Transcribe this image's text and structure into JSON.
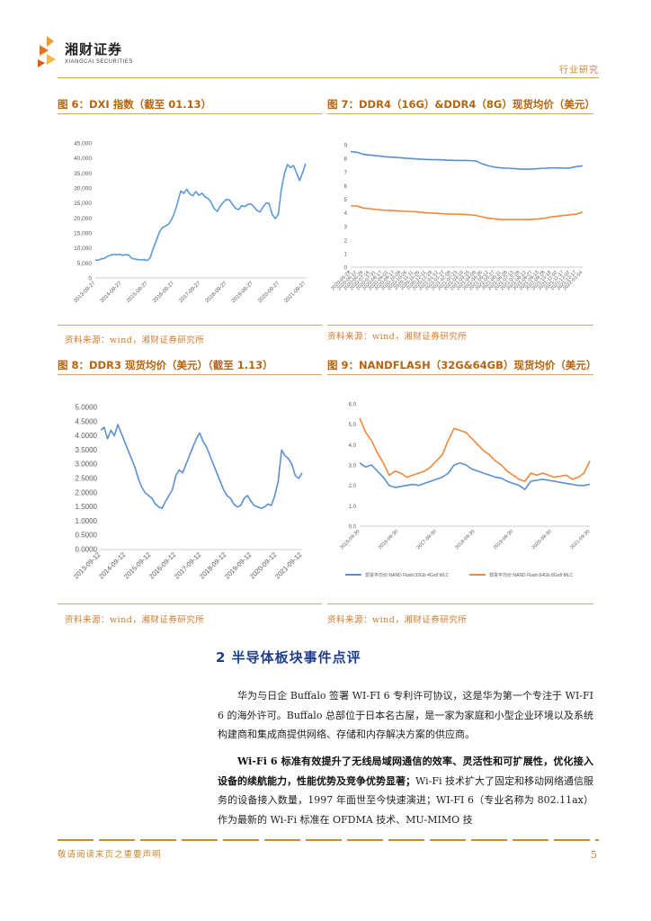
{
  "header": {
    "logo_cn": "湘财证券",
    "logo_en": "XIANGCAI SECURITIES",
    "report_type": "行业研究"
  },
  "figures": [
    {
      "title": "图 6：DXI 指数（截至 01.13）",
      "source": "资料来源：wind，湘财证券研究所"
    },
    {
      "title": "图 7：DDR4（16G）&DDR4（8G）现货均价（美元）",
      "source": "资料来源：wind，湘财证券研究所"
    },
    {
      "title": "图 8：DDR3 现货均价（美元）（截至 1.13）",
      "source": "资料来源：wind，湘财证券研究所"
    },
    {
      "title": "图 9：NANDFLASH（32G&64GB）现货均价（美元）",
      "source": "资料来源：wind，湘财证券研究所"
    }
  ],
  "section": {
    "heading": "2 半导体板块事件点评"
  },
  "paragraphs": [
    {
      "text": "华为与日企 Buffalo 签署 WI-FI 6 专利许可协议，这是华为第一个专注于 WI-FI 6 的海外许可。Buffalo 总部位于日本名古屋，是一家为家庭和小型企业环境以及系统构建商和集成商提供网络、存储和内存解决方案的供应商。"
    },
    {
      "bold": "Wi-Fi 6 标准有效提升了无线局域网通信的效率、灵活性和可扩展性，优化接入设备的续航能力，性能优势及竞争优势显著；",
      "text": "Wi-Fi 技术扩大了固定和移动网络通信服务的设备接入数量，1997 年面世至今快速演进；WI-FI 6（专业名称为 802.11ax）作为最新的 Wi-Fi 标准在 OFDMA 技术、MU-MIMO 技"
    }
  ],
  "footer": {
    "disclaimer": "敬请阅读末页之重要声明",
    "page": "5"
  },
  "colors": {
    "line_blue": "#5b8fd0",
    "line_orange": "#f0883a",
    "dxi_line": "#5a9ad8",
    "accent": "#c8872c"
  },
  "chart_data": [
    {
      "type": "line",
      "title": "",
      "x_ticks": [
        "2013-09-27",
        "2014-09-27",
        "2015-09-27",
        "2016-09-27",
        "2017-09-27",
        "2018-09-27",
        "2019-09-27",
        "2020-09-27",
        "2021-09-27"
      ],
      "y_ticks": [
        "0",
        "5,000",
        "10,000",
        "15,000",
        "20,000",
        "25,000",
        "30,000",
        "35,000",
        "40,000",
        "45,000"
      ],
      "ylim": [
        0,
        45000
      ],
      "series": [
        {
          "values": [
            6000,
            5900,
            6400,
            6500,
            7200,
            7600,
            7800,
            7700,
            7900,
            7500,
            7800,
            7600,
            6500,
            6300,
            6100,
            6000,
            6100,
            5800,
            6700,
            9800,
            12400,
            15200,
            16800,
            17300,
            17900,
            19500,
            21800,
            25200,
            29000,
            28200,
            29600,
            28000,
            27400,
            28800,
            27500,
            28300,
            27000,
            26500,
            25200,
            23000,
            22200,
            24000,
            25200,
            26200,
            26000,
            24500,
            23200,
            22800,
            24100,
            23800,
            24500,
            24700,
            23800,
            22500,
            22000,
            23600,
            25000,
            24800,
            21200,
            19800,
            21200,
            29500,
            34800,
            37800,
            36800,
            37500,
            35000,
            32500,
            35200,
            38200
          ]
        }
      ]
    },
    {
      "type": "line",
      "title": "",
      "y_ticks": [
        "0",
        "1",
        "2",
        "3",
        "4",
        "5",
        "6",
        "7",
        "8",
        "9"
      ],
      "ylim": [
        0,
        9
      ],
      "x_ticks": [
        "2020-05-28",
        "2020-06-12",
        "2020-06-29",
        "2020-07-16",
        "2020-07-31",
        "2020-08-17",
        "2020-09-01",
        "2020-09-17",
        "2020-10-09",
        "2020-10-26",
        "2020-11-11",
        "2020-11-26",
        "2020-12-11",
        "2020-12-28",
        "2021-01-12",
        "2021-01-27",
        "2021-02-08",
        "2021-02-23",
        "2021-03-10",
        "2021-03-25",
        "2021-04-09",
        "2021-04-26",
        "2021-05-12",
        "2021-05-27",
        "2021-06-11",
        "2021-06-28",
        "2021-07-13",
        "2021-07-28",
        "2021-08-12",
        "2021-08-27",
        "2021-09-13",
        "2021-09-28",
        "2021-10-18",
        "2021-11-02",
        "2021-11-17",
        "2021-12-02",
        "2021-12-17",
        "2022-01-04"
      ],
      "series": [
        {
          "values": [
            8.5,
            8.45,
            8.3,
            8.25,
            8.2,
            8.15,
            8.1,
            8.08,
            8.05,
            8.0,
            7.98,
            7.95,
            7.92,
            7.9,
            7.9,
            7.88,
            7.86,
            7.85,
            7.85,
            7.84,
            7.8,
            7.6,
            7.45,
            7.35,
            7.3,
            7.28,
            7.25,
            7.22,
            7.2,
            7.22,
            7.25,
            7.28,
            7.3,
            7.3,
            7.28,
            7.3,
            7.4,
            7.45
          ]
        },
        {
          "values": [
            4.5,
            4.5,
            4.35,
            4.3,
            4.25,
            4.2,
            4.18,
            4.15,
            4.12,
            4.1,
            4.08,
            4.05,
            4.0,
            3.98,
            3.95,
            3.92,
            3.9,
            3.9,
            3.88,
            3.85,
            3.8,
            3.7,
            3.6,
            3.55,
            3.5,
            3.5,
            3.5,
            3.5,
            3.5,
            3.52,
            3.55,
            3.6,
            3.7,
            3.75,
            3.8,
            3.85,
            3.9,
            4.05
          ]
        }
      ]
    },
    {
      "type": "line",
      "title": "",
      "y_ticks": [
        "0.0000",
        "0.5000",
        "1.0000",
        "1.5000",
        "2.0000",
        "2.5000",
        "3.0000",
        "3.5000",
        "4.0000",
        "4.5000",
        "5.0000"
      ],
      "ylim": [
        0,
        5
      ],
      "x_ticks": [
        "2013-09-12",
        "2014-09-12",
        "2015-09-12",
        "2016-09-12",
        "2017-09-12",
        "2018-09-12",
        "2019-09-12",
        "2020-09-12",
        "2021-09-12"
      ],
      "series": [
        {
          "values": [
            4.2,
            4.3,
            3.9,
            4.2,
            4.0,
            4.4,
            4.1,
            3.8,
            3.5,
            3.2,
            2.9,
            2.5,
            2.2,
            2.0,
            1.9,
            1.8,
            1.6,
            1.5,
            1.45,
            1.7,
            1.9,
            2.1,
            2.6,
            2.8,
            2.7,
            3.0,
            3.3,
            3.6,
            3.9,
            4.1,
            3.8,
            3.6,
            3.3,
            3.0,
            2.7,
            2.4,
            2.1,
            1.9,
            1.8,
            1.6,
            1.5,
            1.55,
            1.8,
            1.9,
            1.7,
            1.55,
            1.5,
            1.45,
            1.5,
            1.6,
            1.55,
            1.9,
            2.4,
            3.5,
            3.3,
            3.2,
            3.0,
            2.6,
            2.5,
            2.7
          ]
        }
      ]
    },
    {
      "type": "line",
      "title": "",
      "y_ticks": [
        "0.0",
        "1.0",
        "2.0",
        "3.0",
        "4.0",
        "5.0",
        "6.0"
      ],
      "ylim": [
        0,
        6
      ],
      "x_ticks": [
        "2015-09-30",
        "2016-09-30",
        "2017-09-30",
        "2018-09-30",
        "2019-09-30",
        "2020-09-30",
        "2021-09-30"
      ],
      "series": [
        {
          "name": "现货平均价:NAND Flash:32Gb 4Gx8 MLC",
          "values": [
            3.1,
            2.9,
            3.0,
            2.7,
            2.4,
            2.0,
            1.9,
            1.95,
            2.0,
            2.05,
            2.0,
            2.1,
            2.2,
            2.3,
            2.4,
            2.6,
            3.0,
            3.1,
            3.0,
            2.8,
            2.7,
            2.6,
            2.5,
            2.4,
            2.35,
            2.2,
            2.1,
            2.0,
            1.8,
            2.2,
            2.25,
            2.3,
            2.25,
            2.2,
            2.15,
            2.1,
            2.05,
            2.0,
            2.0,
            2.05
          ]
        },
        {
          "name": "现货平均价:NAND Flash:64Gb 8Gx8 MLC",
          "values": [
            5.3,
            4.6,
            4.2,
            3.6,
            3.1,
            2.5,
            2.7,
            2.6,
            2.4,
            2.5,
            2.6,
            2.7,
            2.9,
            3.2,
            3.5,
            4.2,
            4.8,
            4.7,
            4.6,
            4.3,
            4.0,
            3.7,
            3.5,
            3.2,
            3.0,
            2.7,
            2.5,
            2.3,
            2.2,
            2.6,
            2.5,
            2.6,
            2.5,
            2.4,
            2.45,
            2.5,
            2.3,
            2.4,
            2.6,
            3.2
          ]
        }
      ]
    }
  ]
}
